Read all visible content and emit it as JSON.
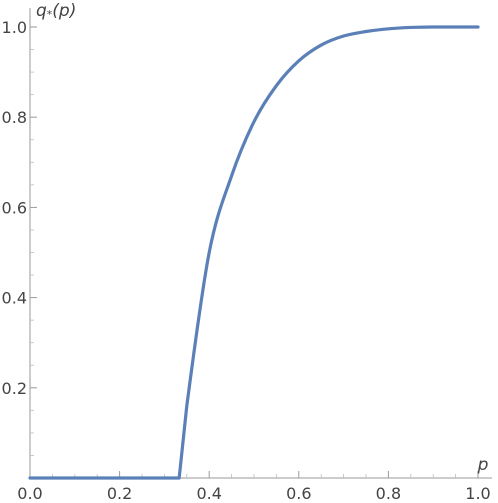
{
  "chart_data": {
    "type": "line",
    "title": "",
    "xlabel": "p",
    "ylabel": "q*(p)",
    "xlim": [
      0,
      1
    ],
    "ylim": [
      0,
      1
    ],
    "x_ticks": [
      0.0,
      0.2,
      0.4,
      0.6,
      0.8,
      1.0
    ],
    "x_tick_labels": [
      "0.0",
      "0.2",
      "0.4",
      "0.6",
      "0.8",
      "1.0"
    ],
    "y_ticks": [
      0.2,
      0.4,
      0.6,
      0.8,
      1.0
    ],
    "y_tick_labels": [
      "0.2",
      "0.4",
      "0.6",
      "0.8",
      "1.0"
    ],
    "grid": false,
    "line_color": "#5b80b8",
    "series": [
      {
        "x": [
          0.0,
          0.1,
          0.2,
          0.3,
          0.333,
          0.35,
          0.4,
          0.45,
          0.5,
          0.55,
          0.6,
          0.65,
          0.7,
          0.75,
          0.8,
          0.85,
          0.9,
          0.95,
          1.0
        ],
        "y": [
          0.0,
          0.0,
          0.0,
          0.0,
          0.0,
          0.16,
          0.5,
          0.67,
          0.79,
          0.87,
          0.925,
          0.96,
          0.98,
          0.99,
          0.996,
          0.999,
          1.0,
          1.0,
          1.0
        ]
      }
    ]
  }
}
